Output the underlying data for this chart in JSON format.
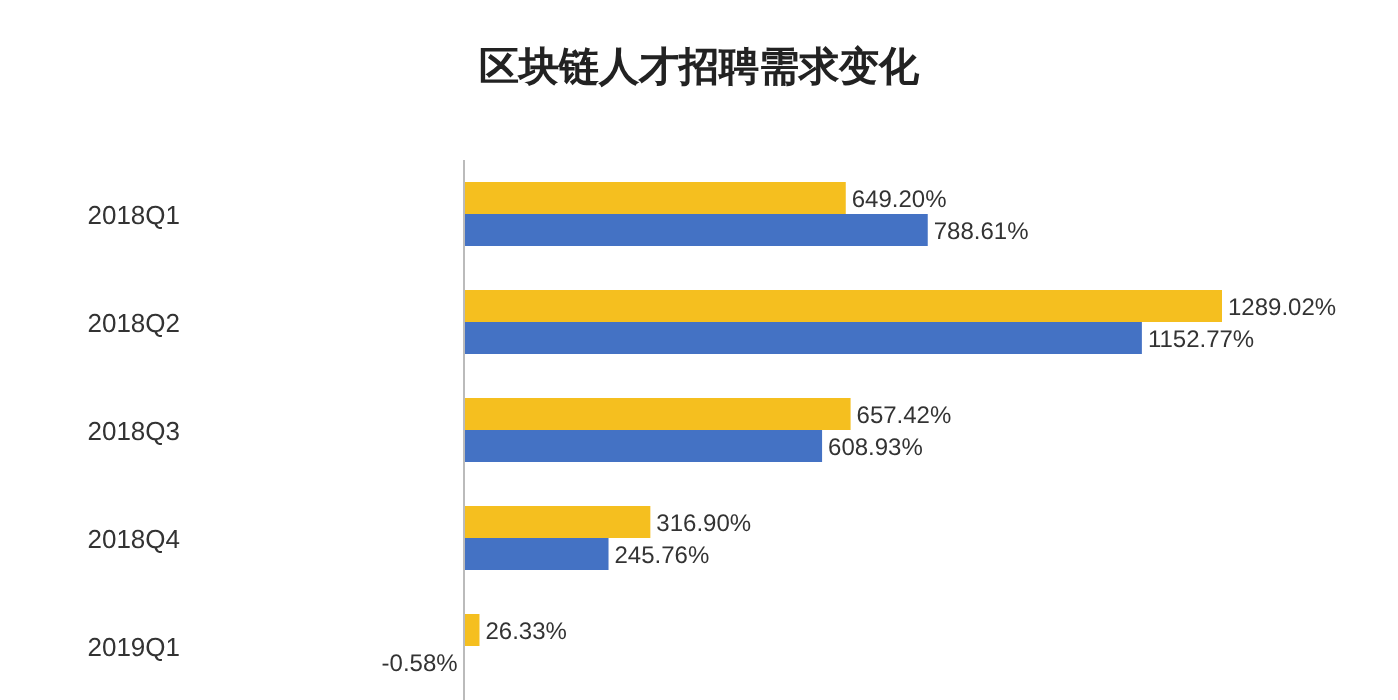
{
  "chart_data": {
    "type": "bar",
    "orientation": "horizontal",
    "title": "区块链人才招聘需求变化",
    "categories": [
      "2018Q1",
      "2018Q2",
      "2018Q3",
      "2018Q4",
      "2019Q1"
    ],
    "series": [
      {
        "color": "#f5bf1f",
        "values": [
          649.2,
          1289.02,
          657.42,
          316.9,
          26.33
        ],
        "value_labels": [
          "649.20%",
          "1289.02%",
          "657.42%",
          "316.90%",
          "26.33%"
        ]
      },
      {
        "color": "#4472c4",
        "values": [
          788.61,
          1152.77,
          608.93,
          245.76,
          -0.58
        ],
        "value_labels": [
          "788.61%",
          "1152.77%",
          "608.93%",
          "245.76%",
          "-0.58%"
        ]
      }
    ]
  }
}
